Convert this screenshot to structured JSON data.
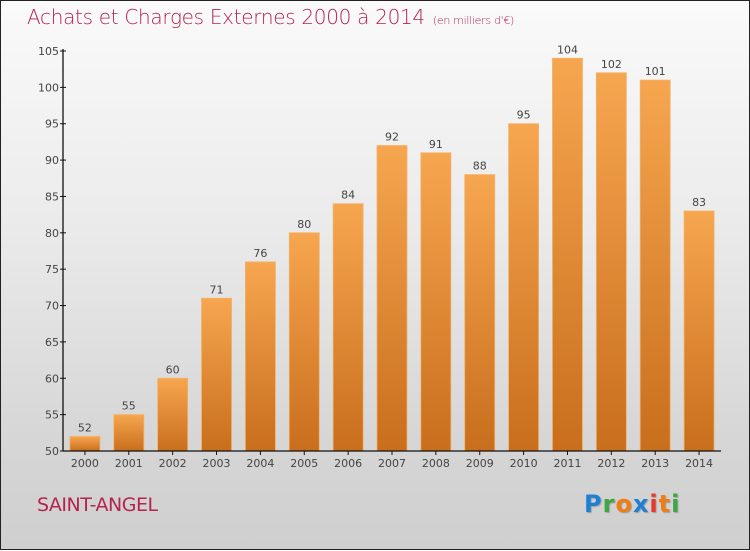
{
  "header": {
    "title": "Achats et Charges Externes 2000 à 2014",
    "subtitle": "(en milliers d'€)"
  },
  "footer": {
    "city": "SAINT-ANGEL",
    "logo": [
      {
        "char": "P",
        "color": "#1e7fd4"
      },
      {
        "char": "r",
        "color": "#3aa843"
      },
      {
        "char": "o",
        "color": "#f07c14"
      },
      {
        "char": "x",
        "color": "#1e7fd4"
      },
      {
        "char": "i",
        "color": "#e8382c"
      },
      {
        "char": "t",
        "color": "#f07c14"
      },
      {
        "char": "i",
        "color": "#3aa843"
      }
    ]
  },
  "colors": {
    "title": "#b5234f",
    "bar_top": "#f7a650",
    "bar_bottom": "#c86e1c"
  },
  "chart_data": {
    "type": "bar",
    "title": "Achats et Charges Externes 2000 à 2014",
    "subtitle": "(en milliers d'€)",
    "xlabel": "",
    "ylabel": "",
    "categories": [
      "2000",
      "2001",
      "2002",
      "2003",
      "2004",
      "2005",
      "2006",
      "2007",
      "2008",
      "2009",
      "2010",
      "2011",
      "2012",
      "2013",
      "2014"
    ],
    "values": [
      52,
      55,
      60,
      71,
      76,
      80,
      84,
      92,
      91,
      88,
      95,
      104,
      102,
      101,
      83
    ],
    "ylim": [
      50,
      105
    ],
    "yticks": [
      50,
      55,
      60,
      65,
      70,
      75,
      80,
      85,
      90,
      95,
      100,
      105
    ],
    "grid": false,
    "legend": "none",
    "data_labels": true
  }
}
